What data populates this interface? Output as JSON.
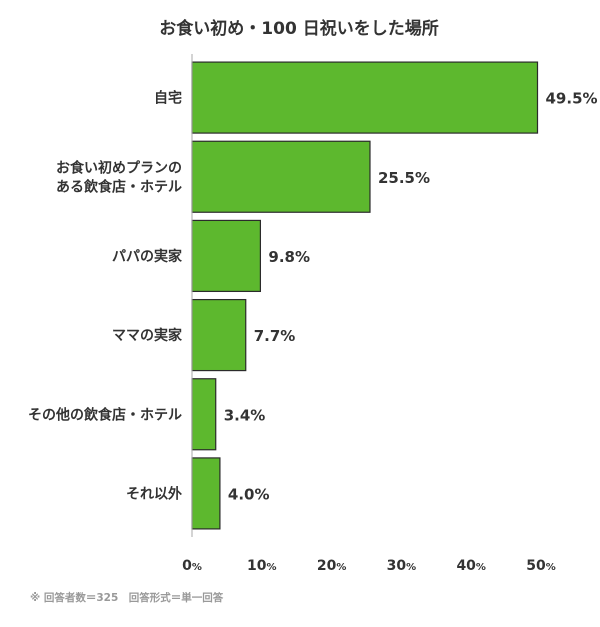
{
  "chart_data": {
    "type": "bar",
    "orientation": "horizontal",
    "title": "お食い初め・100 日祝いをした場所",
    "categories": [
      [
        "自宅"
      ],
      [
        "お食い初めプランの",
        "ある飲食店・ホテル"
      ],
      [
        "パパの実家"
      ],
      [
        "ママの実家"
      ],
      [
        "その他の飲食店・ホテル"
      ],
      [
        "それ以外"
      ]
    ],
    "values": [
      49.5,
      25.5,
      9.8,
      7.7,
      3.4,
      4.0
    ],
    "value_labels": [
      "49.5%",
      "25.5%",
      "9.8%",
      "7.7%",
      "3.4%",
      "4.0%"
    ],
    "xlim": [
      0,
      50
    ],
    "ticks": [
      0,
      10,
      20,
      30,
      40,
      50
    ],
    "tick_labels": [
      "0",
      "10",
      "20",
      "30",
      "40",
      "50"
    ],
    "tick_unit": "%",
    "grid": false,
    "bar_color": "#5db82e",
    "bar_edge_color": "#2b2b2b",
    "footnote": "※ 回答者数＝325　回答形式＝単一回答"
  }
}
